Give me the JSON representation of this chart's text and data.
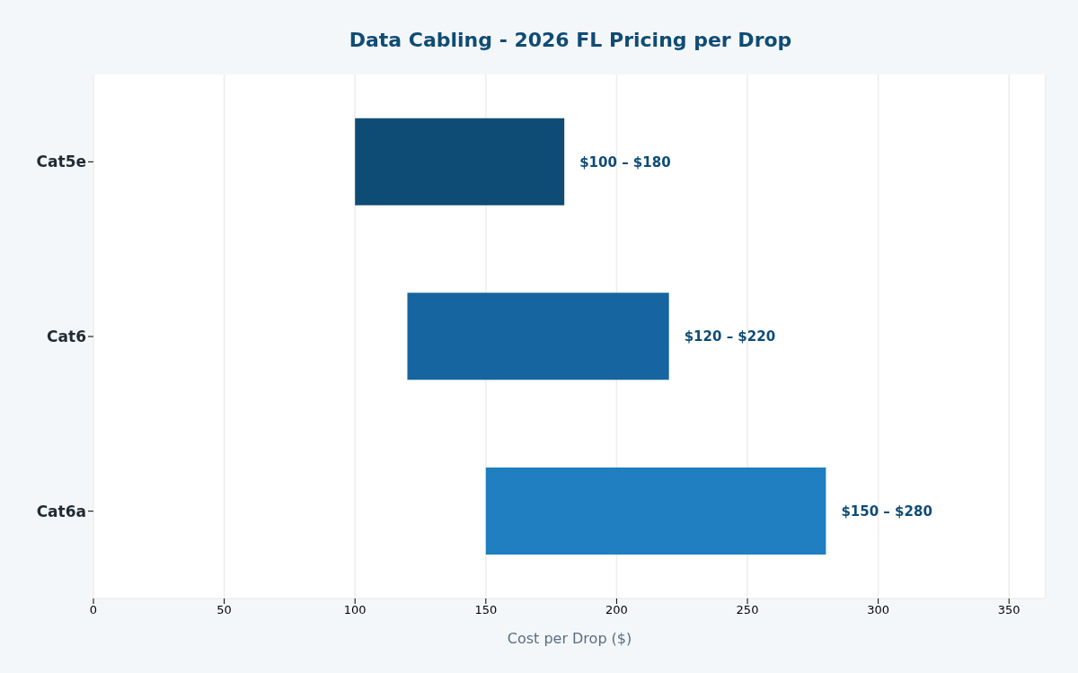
{
  "chart_data": {
    "type": "bar",
    "orientation": "horizontal",
    "title": "Data Cabling - 2026 FL Pricing per Drop",
    "xlabel": "Cost per Drop ($)",
    "categories": [
      "Cat5e",
      "Cat6",
      "Cat6a"
    ],
    "base": [
      100,
      120,
      150
    ],
    "values": [
      80,
      100,
      130
    ],
    "colors": [
      "#0f4c75",
      "#1665a0",
      "#1f7fc1"
    ],
    "annotations": [
      {
        "text": "$100 – $180",
        "x": 180,
        "y": "Cat5e"
      },
      {
        "text": "$120 – $220",
        "x": 220,
        "y": "Cat6"
      },
      {
        "text": "$150 – $280",
        "x": 280,
        "y": "Cat6a"
      }
    ],
    "xlim": [
      0,
      364
    ],
    "xticks": [
      0,
      50,
      100,
      150,
      200,
      250,
      300,
      350
    ],
    "grid": "x"
  }
}
